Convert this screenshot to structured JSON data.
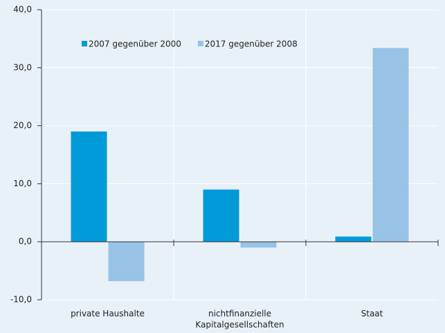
{
  "chart_data": {
    "type": "bar",
    "categories": [
      "private Haushalte",
      "nichtfinanzielle Kapitalgesellschaften",
      "Staat"
    ],
    "series": [
      {
        "name": "2007 gegenüber 2000",
        "color": "#009ad9",
        "values": [
          19,
          9,
          0.9
        ]
      },
      {
        "name": "2017 gegenüber 2008",
        "color": "#99c3e6",
        "values": [
          -6.8,
          -1,
          33.4
        ]
      }
    ],
    "ylim": [
      -10,
      40
    ],
    "yticks": [
      {
        "value": -10,
        "label": "-10,0"
      },
      {
        "value": 0,
        "label": "0,0"
      },
      {
        "value": 10,
        "label": "10,0"
      },
      {
        "value": 20,
        "label": "20,0"
      },
      {
        "value": 30,
        "label": "30,0"
      },
      {
        "value": 40,
        "label": "40,0"
      }
    ],
    "grid": true,
    "legend": "upper left"
  }
}
